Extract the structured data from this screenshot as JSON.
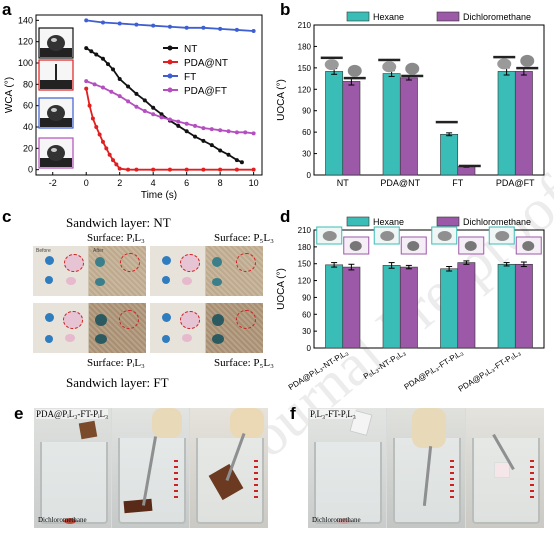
{
  "figure": {
    "watermark": "Journal Pre-proof",
    "panel_labels": {
      "a": "a",
      "b": "b",
      "c": "c",
      "d": "d",
      "e": "e",
      "f": "f"
    }
  },
  "chart_data": [
    {
      "id": "a",
      "type": "line",
      "xlabel": "Time (s)",
      "ylabel": "WCA (°)",
      "xlim": [
        -3,
        10.5
      ],
      "ylim": [
        -5,
        145
      ],
      "xticks": [
        -2,
        0,
        2,
        4,
        6,
        8,
        10
      ],
      "yticks": [
        0,
        20,
        40,
        60,
        80,
        100,
        120,
        140
      ],
      "legend_position": "top-right",
      "series": [
        {
          "name": "NT",
          "color": "#111111",
          "x": [
            0,
            0.3,
            0.6,
            1,
            1.3,
            1.6,
            2,
            2.5,
            3,
            3.5,
            4,
            4.5,
            5,
            5.5,
            6,
            6.5,
            7,
            7.5,
            8,
            8.5,
            9,
            9.3
          ],
          "y": [
            114,
            111,
            108,
            104,
            99,
            94,
            85,
            78,
            71,
            65,
            58,
            52,
            46,
            41,
            36,
            31,
            27,
            23,
            18,
            14,
            9,
            7
          ]
        },
        {
          "name": "PDA@NT",
          "color": "#e02020",
          "x": [
            0,
            0.2,
            0.4,
            0.6,
            0.8,
            1,
            1.2,
            1.4,
            1.6,
            1.8,
            2,
            2.5,
            3,
            4,
            5,
            6,
            7,
            8,
            9,
            10
          ],
          "y": [
            76,
            60,
            48,
            40,
            33,
            26,
            20,
            14,
            9,
            5,
            1,
            0,
            0,
            0,
            0,
            0,
            0,
            0,
            0,
            0
          ]
        },
        {
          "name": "FT",
          "color": "#3d5fd1",
          "x": [
            0,
            1,
            2,
            3,
            4,
            5,
            6,
            7,
            8,
            9,
            10
          ],
          "y": [
            140,
            138,
            137,
            136,
            135,
            134,
            133,
            133,
            132,
            131,
            130
          ]
        },
        {
          "name": "PDA@FT",
          "color": "#b44fbf",
          "x": [
            0,
            0.5,
            1,
            1.5,
            2,
            2.5,
            3,
            3.5,
            4,
            4.5,
            5,
            5.5,
            6,
            6.5,
            7,
            7.5,
            8,
            8.5,
            9,
            9.5,
            10
          ],
          "y": [
            83,
            80,
            77,
            73,
            69,
            64,
            59,
            55,
            52,
            49,
            47,
            45,
            43,
            41,
            39,
            38,
            37,
            36,
            35,
            35,
            34
          ]
        }
      ]
    },
    {
      "id": "b",
      "type": "bar",
      "ylabel": "UOCA (°)",
      "ylim": [
        0,
        210
      ],
      "yticks": [
        0,
        30,
        60,
        90,
        120,
        150,
        180,
        210
      ],
      "categories": [
        "NT",
        "PDA@NT",
        "FT",
        "PDA@FT"
      ],
      "legend_position": "top",
      "series": [
        {
          "name": "Hexane",
          "color": "#3bbdb7",
          "values": [
            145,
            142,
            57,
            145
          ],
          "errors": [
            4,
            4,
            2,
            5
          ]
        },
        {
          "name": "Dichloromethane",
          "color": "#9b59a8",
          "values": [
            131,
            136,
            12,
            145
          ],
          "errors": [
            5,
            3,
            1,
            5
          ]
        }
      ]
    },
    {
      "id": "d",
      "type": "bar",
      "ylabel": "UOCA (°)",
      "ylim": [
        0,
        210
      ],
      "yticks": [
        0,
        30,
        60,
        90,
        120,
        150,
        180,
        210
      ],
      "categories": [
        "PDA@PᵢL₃-NT-PᵢL₃",
        "P₅L₃-NT-P₅L₃",
        "PDA@PᵢL₃-FT-PᵢL₃",
        "PDA@P₅L₃-FT-P₅L₃"
      ],
      "legend_position": "top",
      "series": [
        {
          "name": "Hexane",
          "color": "#3bbdb7",
          "values": [
            148,
            147,
            141,
            149
          ],
          "errors": [
            4,
            5,
            4,
            3
          ]
        },
        {
          "name": "Dichloromethane",
          "color": "#9b59a8",
          "values": [
            144,
            144,
            152,
            149
          ],
          "errors": [
            5,
            3,
            3,
            4
          ]
        }
      ]
    }
  ],
  "panel_c": {
    "top_title": "Sandwich layer: NT",
    "bottom_title": "Sandwich layer: FT",
    "surface_labels": [
      "Surface: PᵢL₃",
      "Surface: P₅L₃",
      "Surface: PᵢL₃",
      "Surface: P₅L₃"
    ],
    "before_label": "Before",
    "after_label": "After"
  },
  "panel_e": {
    "caption": "PDA@PᵢL₃-FT-PᵢL₃",
    "liquid_label": "Dichloromethane"
  },
  "panel_f": {
    "caption": "PᵢL₃-FT-PᵢL₃",
    "liquid_label": "Dichloromethane"
  }
}
